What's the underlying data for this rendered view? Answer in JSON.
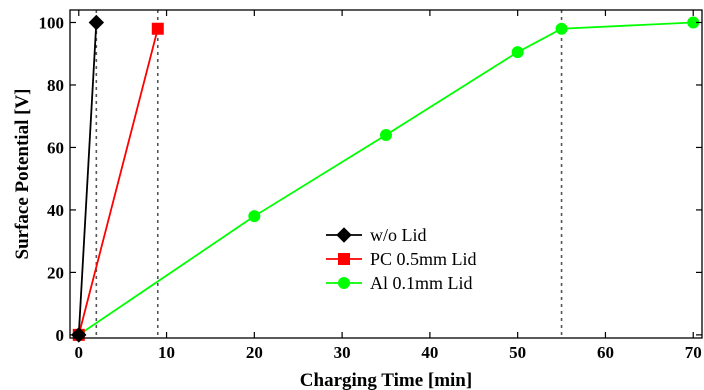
{
  "chart_data": {
    "type": "line",
    "xlabel": "Charging Time [min]",
    "ylabel": "Surface Potential [V]",
    "xlim": [
      -1,
      71
    ],
    "ylim": [
      -1,
      104
    ],
    "xticks": [
      0,
      10,
      20,
      30,
      40,
      50,
      60,
      70
    ],
    "yticks": [
      0,
      20,
      40,
      60,
      80,
      100
    ],
    "grid": false,
    "legend_position": "center",
    "series": [
      {
        "name": "w/o Lid",
        "color": "#000000",
        "marker": "diamond",
        "x": [
          0,
          2
        ],
        "y": [
          0,
          100
        ]
      },
      {
        "name": "PC 0.5mm Lid",
        "color": "#ff0000",
        "marker": "square",
        "x": [
          0,
          9
        ],
        "y": [
          0,
          98
        ]
      },
      {
        "name": "Al 0.1mm Lid",
        "color": "#00ff00",
        "marker": "circle",
        "x": [
          0,
          20,
          35,
          50,
          55,
          70
        ],
        "y": [
          0,
          38,
          64,
          90.5,
          98,
          100
        ]
      }
    ],
    "reference_lines_x": [
      2,
      9,
      55
    ]
  }
}
